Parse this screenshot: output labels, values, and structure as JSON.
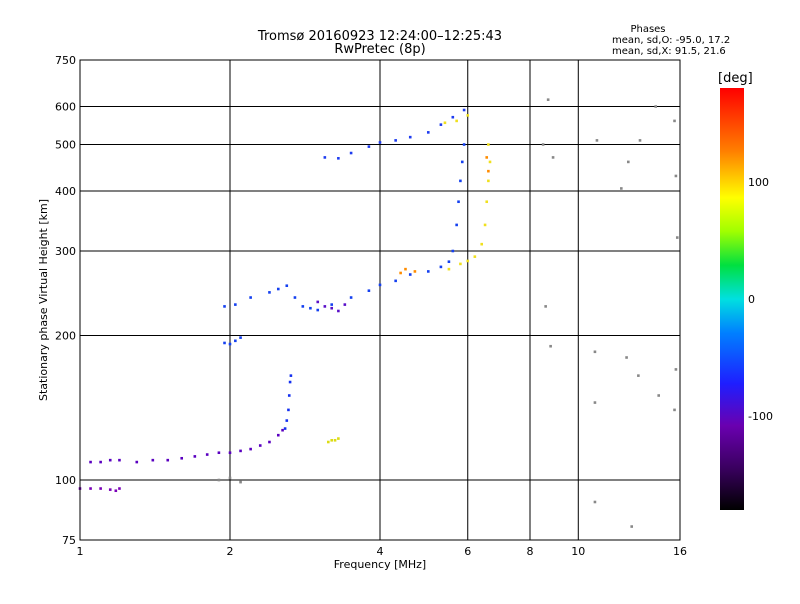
{
  "chart_data": {
    "type": "scatter",
    "title": "Tromsø 20160923 12:24:00–12:25:43",
    "subtitle": "RwPretec (8p)",
    "xlabel": "Frequency [MHz]",
    "ylabel": "Stationary phase Virtual Height [km]",
    "x_scale": "log",
    "y_scale": "log",
    "xlim": [
      1,
      16
    ],
    "ylim": [
      75,
      750
    ],
    "xticks": [
      1,
      2,
      4,
      6,
      8,
      10,
      16
    ],
    "yticks": [
      75,
      100,
      200,
      300,
      400,
      500,
      600,
      750
    ],
    "grid": true,
    "legend_text": {
      "heading": "Phases",
      "line1": "mean, sd,O: -95.0, 17.2",
      "line2": "mean, sd,X:  91.5, 21.6"
    },
    "colorbar": {
      "label": "[deg]",
      "range": [
        -180,
        180
      ],
      "ticks": [
        100,
        0,
        -100
      ],
      "colormap": "rainbow (black-purple-blue-cyan-green-yellow-red)"
    },
    "series": [
      {
        "phase_color": "#7a00b8",
        "points": [
          [
            1.0,
            96
          ],
          [
            1.05,
            96
          ],
          [
            1.1,
            96
          ],
          [
            1.15,
            95.5
          ],
          [
            1.18,
            95
          ],
          [
            1.2,
            96
          ]
        ]
      },
      {
        "phase_color": "#5a00c0",
        "points": [
          [
            1.05,
            109
          ],
          [
            1.1,
            109
          ],
          [
            1.15,
            110
          ],
          [
            1.2,
            110
          ],
          [
            1.3,
            109
          ],
          [
            1.4,
            110
          ],
          [
            1.5,
            110
          ],
          [
            1.6,
            111
          ],
          [
            1.7,
            112
          ],
          [
            1.8,
            113
          ],
          [
            1.9,
            114
          ],
          [
            2.0,
            114
          ],
          [
            2.1,
            115
          ],
          [
            2.2,
            116
          ],
          [
            2.3,
            118
          ],
          [
            2.4,
            120
          ],
          [
            2.5,
            124
          ],
          [
            2.55,
            127
          ]
        ]
      },
      {
        "phase_color": "#1430f0",
        "points": [
          [
            2.58,
            128
          ],
          [
            2.6,
            133
          ],
          [
            2.62,
            140
          ],
          [
            2.63,
            150
          ],
          [
            2.64,
            160
          ],
          [
            2.65,
            165
          ]
        ]
      },
      {
        "phase_color": "#1440f0",
        "points": [
          [
            1.95,
            193
          ],
          [
            2.0,
            192
          ],
          [
            2.05,
            195
          ],
          [
            2.1,
            198
          ],
          [
            1.95,
            230
          ],
          [
            2.05,
            232
          ],
          [
            2.2,
            240
          ],
          [
            2.4,
            246
          ],
          [
            2.5,
            250
          ],
          [
            2.6,
            254
          ],
          [
            2.7,
            240
          ],
          [
            2.8,
            230
          ],
          [
            2.9,
            228
          ],
          [
            3.0,
            226
          ],
          [
            3.2,
            232
          ],
          [
            3.5,
            240
          ],
          [
            3.8,
            248
          ],
          [
            4.0,
            255
          ],
          [
            4.3,
            260
          ],
          [
            4.6,
            268
          ],
          [
            5.0,
            272
          ],
          [
            5.3,
            278
          ],
          [
            5.5,
            285
          ],
          [
            5.6,
            300
          ],
          [
            5.7,
            340
          ],
          [
            5.75,
            380
          ],
          [
            5.8,
            420
          ],
          [
            5.85,
            460
          ],
          [
            5.9,
            500
          ]
        ]
      },
      {
        "phase_color": "#5a10c8",
        "points": [
          [
            3.0,
            235
          ],
          [
            3.1,
            230
          ],
          [
            3.2,
            228
          ],
          [
            3.3,
            225
          ],
          [
            3.4,
            232
          ]
        ]
      },
      {
        "phase_color": "#1e3cf0",
        "points": [
          [
            3.1,
            470
          ],
          [
            3.3,
            468
          ],
          [
            3.5,
            480
          ],
          [
            3.8,
            495
          ],
          [
            4.0,
            505
          ],
          [
            4.3,
            510
          ],
          [
            4.6,
            518
          ],
          [
            5.0,
            530
          ],
          [
            5.3,
            550
          ],
          [
            5.6,
            570
          ],
          [
            5.9,
            590
          ]
        ]
      },
      {
        "phase_color": "#f0e01e",
        "points": [
          [
            5.5,
            275
          ],
          [
            5.8,
            282
          ],
          [
            6.0,
            286
          ],
          [
            6.2,
            292
          ],
          [
            6.4,
            310
          ],
          [
            6.5,
            340
          ],
          [
            6.55,
            380
          ],
          [
            6.6,
            420
          ],
          [
            6.65,
            460
          ],
          [
            6.6,
            500
          ],
          [
            6.0,
            575
          ],
          [
            5.7,
            560
          ],
          [
            5.4,
            555
          ]
        ]
      },
      {
        "phase_color": "#ff8c00",
        "points": [
          [
            4.4,
            270
          ],
          [
            4.5,
            275
          ],
          [
            4.7,
            272
          ],
          [
            6.6,
            440
          ],
          [
            6.55,
            470
          ]
        ]
      },
      {
        "phase_color": "#dcdc14",
        "points": [
          [
            3.15,
            120
          ],
          [
            3.2,
            121
          ],
          [
            3.25,
            121
          ],
          [
            3.3,
            122
          ]
        ]
      },
      {
        "phase_color": "#888888",
        "points": [
          [
            1.9,
            100
          ],
          [
            2.0,
            101
          ],
          [
            2.1,
            99
          ],
          [
            10.8,
            145
          ],
          [
            10.8,
            185
          ],
          [
            12.5,
            180
          ],
          [
            13.2,
            165
          ],
          [
            15.6,
            140
          ],
          [
            15.7,
            170
          ],
          [
            15.8,
            320
          ],
          [
            15.7,
            430
          ],
          [
            15.6,
            560
          ],
          [
            14.3,
            600
          ],
          [
            13.3,
            510
          ],
          [
            12.6,
            460
          ],
          [
            12.2,
            405
          ],
          [
            10.9,
            510
          ],
          [
            10.8,
            90
          ],
          [
            12.8,
            80
          ],
          [
            14.5,
            150
          ],
          [
            8.7,
            620
          ],
          [
            8.5,
            500
          ],
          [
            8.9,
            470
          ],
          [
            8.8,
            190
          ],
          [
            8.6,
            230
          ]
        ]
      }
    ]
  }
}
